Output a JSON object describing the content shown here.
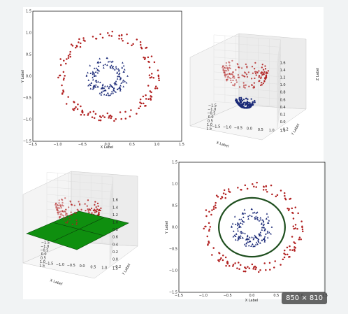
{
  "badge": {
    "text": "850 × 810"
  },
  "colors": {
    "red": "#b22222",
    "blue": "#1b2a78",
    "plane": "#0f8f0f",
    "circle": "#1f4f1f"
  },
  "chart_data": [
    {
      "type": "scatter",
      "panel": "top-left",
      "xlabel": "X Label",
      "ylabel": "Y Label",
      "xlim": [
        -1.5,
        1.5
      ],
      "ylim": [
        -1.5,
        1.5
      ],
      "xticks": [
        "−1.5",
        "−1.0",
        "−0.5",
        "0.0",
        "0.5",
        "1.0",
        "1.5"
      ],
      "yticks": [
        "1.5",
        "1.0",
        "0.5",
        "0.0",
        "−0.5",
        "−1.0",
        "−1.5"
      ],
      "series": [
        {
          "class": "outer",
          "marker": "o",
          "color": "#b22222",
          "radius_range": [
            0.85,
            1.05
          ],
          "count": 150
        },
        {
          "class": "inner",
          "marker": "^",
          "color": "#1b2a78",
          "radius_range": [
            0.2,
            0.45
          ],
          "count": 150
        }
      ]
    },
    {
      "type": "scatter3d",
      "panel": "top-right",
      "xlabel": "X Label",
      "ylabel": "Y Label",
      "zlabel": "Z Label",
      "xticks": [
        "−1.5",
        "−1.0",
        "−0.5",
        "0.0",
        "0.5",
        "1.0",
        "1.5"
      ],
      "yticks": [
        "1.5",
        "1.0",
        "0.5",
        "0.0",
        "−0.5",
        "−1.0",
        "−1.5"
      ],
      "zticks": [
        "1.6",
        "1.4",
        "1.2",
        "1.0",
        "0.8",
        "0.6",
        "0.4",
        "0.2",
        "0.0",
        "−0.2"
      ],
      "series": [
        {
          "class": "outer",
          "color": "#b22222"
        },
        {
          "class": "inner",
          "color": "#1b2a78"
        }
      ]
    },
    {
      "type": "scatter3d",
      "panel": "bottom-left",
      "xlabel": "X Label",
      "ylabel": "Y Label",
      "zlabel": "",
      "xticks": [
        "−1.5",
        "−1.0",
        "−0.5",
        "0.0",
        "0.5",
        "1.0",
        "1.5"
      ],
      "yticks": [
        "1.5",
        "1.0",
        "0.5",
        "0.0",
        "−0.5",
        "−1.0",
        "−1.5"
      ],
      "zticks": [
        "1.6",
        "1.4",
        "1.2",
        "1.0",
        "0.8",
        "0.6",
        "0.4",
        "0.2",
        "0.0",
        "−0.2"
      ],
      "plane": {
        "color": "#0f8f0f"
      },
      "series": [
        {
          "class": "outer",
          "color": "#b22222"
        }
      ]
    },
    {
      "type": "scatter",
      "panel": "bottom-right",
      "xlabel": "X Label",
      "ylabel": "Y Label",
      "xlim": [
        -1.5,
        1.5
      ],
      "ylim": [
        -1.5,
        1.5
      ],
      "xticks": [
        "−1.5",
        "−1.0",
        "−0.5",
        "0.0",
        "0.5",
        "1.0",
        "1.5"
      ],
      "yticks": [
        "1.5",
        "1.0",
        "0.5",
        "0.0",
        "−0.5",
        "−1.0",
        "−1.5"
      ],
      "decision_circle_radius": 0.68,
      "series": [
        {
          "class": "outer",
          "marker": "o",
          "color": "#b22222",
          "radius_range": [
            0.85,
            1.05
          ],
          "count": 150
        },
        {
          "class": "inner",
          "marker": "^",
          "color": "#1b2a78",
          "radius_range": [
            0.2,
            0.45
          ],
          "count": 150
        }
      ]
    }
  ]
}
